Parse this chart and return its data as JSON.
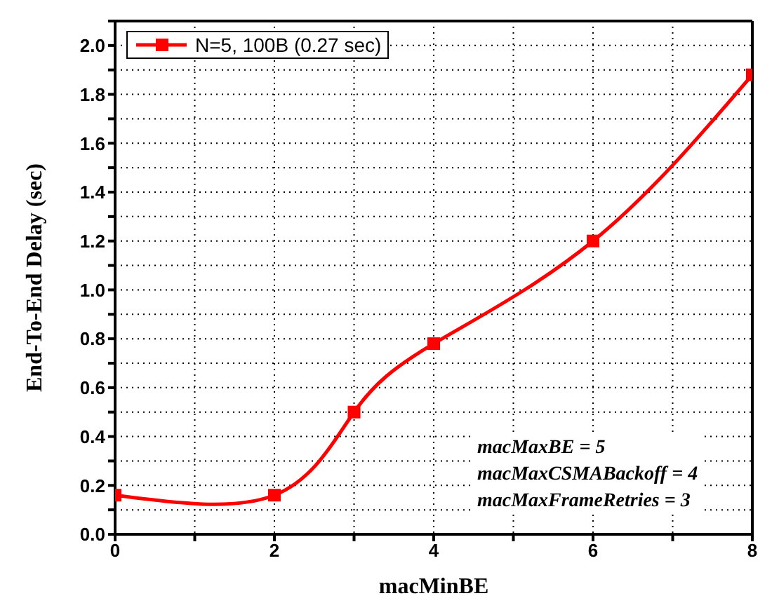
{
  "chart_data": {
    "type": "line",
    "xlabel": "macMinBE",
    "ylabel": "End-To-End Delay (sec)",
    "x": [
      0,
      2,
      3,
      4,
      6,
      8
    ],
    "series": [
      {
        "name": "N=5, 100B (0.27 sec)",
        "color": "#ff0000",
        "values": [
          0.16,
          0.16,
          0.5,
          0.78,
          1.2,
          1.88
        ]
      }
    ],
    "xlim": [
      0,
      8
    ],
    "xticks": [
      0,
      {
        "value": 1,
        "label": null
      },
      2,
      {
        "value": 3,
        "label": null
      },
      4,
      {
        "value": 5,
        "label": null
      },
      6,
      {
        "value": 7,
        "label": null
      },
      8
    ],
    "ylim": [
      0,
      2.1
    ],
    "yticks": [
      "0.0",
      {
        "value": 0.1,
        "label": null
      },
      0.2,
      {
        "value": 0.3,
        "label": null
      },
      0.4,
      {
        "value": 0.5,
        "label": null
      },
      0.6,
      {
        "value": 0.7,
        "label": null
      },
      0.8,
      {
        "value": 0.9,
        "label": null
      },
      "1.0",
      {
        "value": 1.1,
        "label": null
      },
      1.2,
      {
        "value": 1.3,
        "label": null
      },
      1.4,
      {
        "value": 1.5,
        "label": null
      },
      1.6,
      {
        "value": 1.7,
        "label": null
      },
      1.8,
      {
        "value": 1.9,
        "label": null
      },
      "2.0",
      {
        "value": 2.1,
        "label": null
      }
    ],
    "annotations": [
      "macMaxBE = 5",
      "macMaxCSMABackoff = 4",
      "macMaxFrameRetries = 3"
    ],
    "grid": true,
    "legend": "top left",
    "marker": "square",
    "line_style": "solid"
  }
}
